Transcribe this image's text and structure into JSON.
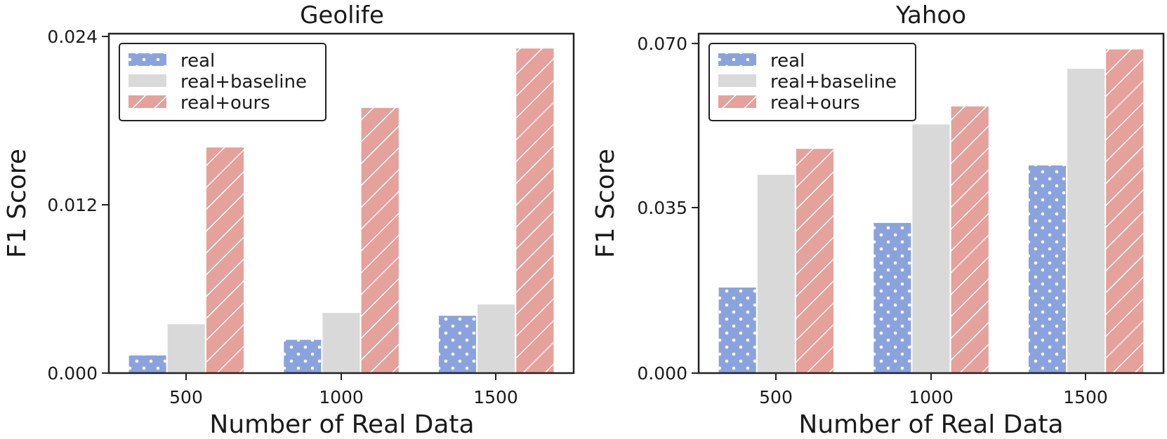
{
  "colors": {
    "real": "#8ba3dc",
    "real+baseline": "#d9d9d9",
    "real+ours": "#e5a19b"
  },
  "chart_data": [
    {
      "type": "bar",
      "title": "Geolife",
      "xlabel": "Number of Real Data",
      "ylabel": "F1 Score",
      "categories": [
        "500",
        "1000",
        "1500"
      ],
      "ylim": [
        0,
        0.024
      ],
      "yticks": [
        "0.000",
        "0.012",
        "0.024"
      ],
      "legend_position": "top-left",
      "grid": false,
      "series": [
        {
          "name": "real",
          "pattern": "dots",
          "values": [
            0.0013,
            0.0024,
            0.0041
          ]
        },
        {
          "name": "real+baseline",
          "pattern": "solid",
          "values": [
            0.0035,
            0.0043,
            0.0049
          ]
        },
        {
          "name": "real+ours",
          "pattern": "hatch",
          "values": [
            0.016,
            0.0188,
            0.023
          ]
        }
      ]
    },
    {
      "type": "bar",
      "title": "Yahoo",
      "xlabel": "Number of Real Data",
      "ylabel": "F1 Score",
      "categories": [
        "500",
        "1000",
        "1500"
      ],
      "ylim": [
        0,
        0.072
      ],
      "yticks": [
        "0.000",
        "0.035",
        "0.070"
      ],
      "legend_position": "top-left",
      "grid": false,
      "series": [
        {
          "name": "real",
          "pattern": "dots",
          "values": [
            0.0183,
            0.032,
            0.0442
          ]
        },
        {
          "name": "real+baseline",
          "pattern": "solid",
          "values": [
            0.0422,
            0.0529,
            0.0647
          ]
        },
        {
          "name": "real+ours",
          "pattern": "hatch",
          "values": [
            0.0477,
            0.0567,
            0.0688
          ]
        }
      ]
    }
  ]
}
